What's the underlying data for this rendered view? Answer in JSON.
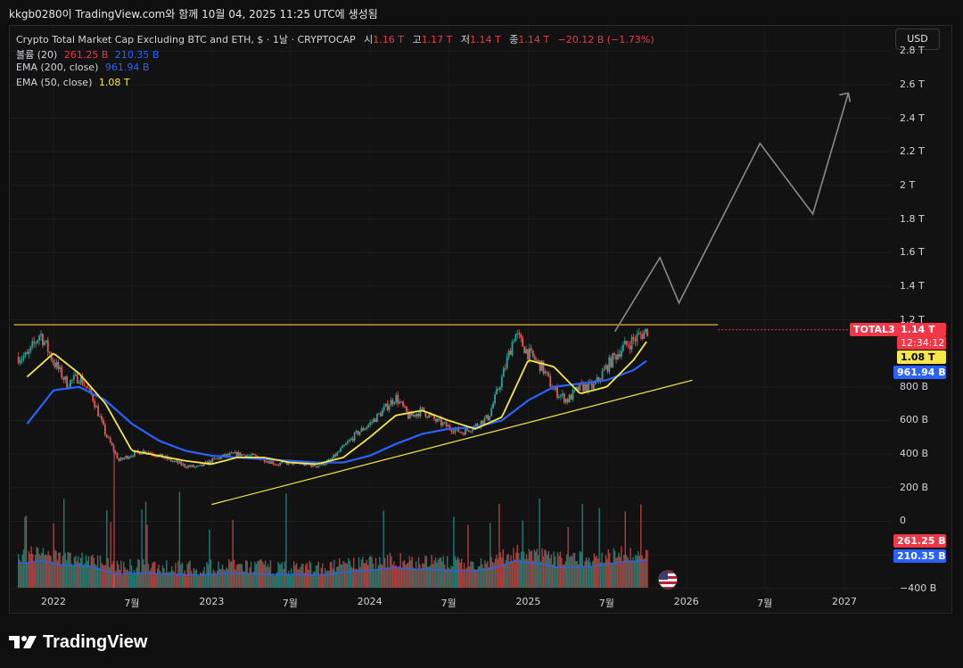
{
  "top_caption": "kkgb0280이 TradingView.com와 함께 10월 04, 2025 11:25 UTC에 생성됨",
  "legend": {
    "title_prefix": "Crypto Total Market Cap Excluding BTC and ETH, $ · 1날 · CRYPTOCAP",
    "ohlc": [
      {
        "label": "시",
        "value": "1.16 T"
      },
      {
        "label": "고",
        "value": "1.17 T"
      },
      {
        "label": "저",
        "value": "1.14 T"
      },
      {
        "label": "종",
        "value": "1.14 T"
      }
    ],
    "change": "−20.12 B (−1.73%)",
    "volume_label": "볼륨 (20)",
    "volume_value1": "261.25 B",
    "volume_value2": "210.35 B",
    "ema200_label": "EMA (200, close)",
    "ema200_value": "961.94 B",
    "ema50_label": "EMA (50, close)",
    "ema50_value": "1.08 T"
  },
  "currency_button": "USD",
  "price_tags": {
    "symbol": "TOTAL3",
    "last": "1.14 T",
    "countdown": "12:34:12",
    "ema50": "1.08 T",
    "ema200": "961.94 B",
    "vol1": "261.25 B",
    "vol2": "210.35 B"
  },
  "footer_brand": "TradingView",
  "colors": {
    "up": "#26a69a",
    "down": "#ef5350",
    "ema50": "#f7e64a",
    "ema200": "#2962ff",
    "resistance": "#f0b23c",
    "projection": "#8a8a8a",
    "last_price": "#f23645"
  },
  "chart_data": {
    "type": "line",
    "y_axis_ticks": [
      "2.8 T",
      "2.6 T",
      "2.4 T",
      "2.2 T",
      "2 T",
      "1.8 T",
      "1.6 T",
      "1.4 T",
      "1.2 T",
      "800 B",
      "600 B",
      "400 B",
      "200 B",
      "0",
      "−200 B",
      "−400 B"
    ],
    "x_axis_ticks": [
      "2022",
      "7월",
      "2023",
      "7월",
      "2024",
      "7월",
      "2025",
      "7월",
      "2026",
      "7월",
      "2027"
    ],
    "ylim_trillions": [
      -0.55,
      2.95
    ],
    "series": [
      {
        "name": "TOTAL3",
        "x": [
          "2021-11-01",
          "2021-12-01",
          "2022-01-01",
          "2022-02-01",
          "2022-03-01",
          "2022-04-01",
          "2022-05-01",
          "2022-06-01",
          "2022-07-01",
          "2022-08-01",
          "2022-09-01",
          "2022-10-01",
          "2022-11-01",
          "2022-12-01",
          "2023-01-01",
          "2023-02-01",
          "2023-03-01",
          "2023-04-01",
          "2023-05-01",
          "2023-06-01",
          "2023-07-01",
          "2023-08-01",
          "2023-09-01",
          "2023-10-01",
          "2023-11-01",
          "2023-12-01",
          "2024-01-01",
          "2024-02-01",
          "2024-03-01",
          "2024-04-01",
          "2024-05-01",
          "2024-06-01",
          "2024-07-01",
          "2024-08-01",
          "2024-09-01",
          "2024-10-01",
          "2024-11-01",
          "2024-12-01",
          "2025-01-01",
          "2025-02-01",
          "2025-03-01",
          "2025-04-01",
          "2025-05-01",
          "2025-06-01",
          "2025-07-01",
          "2025-08-01",
          "2025-09-01",
          "2025-10-04"
        ],
        "values": [
          0.98,
          1.12,
          0.95,
          0.82,
          0.86,
          0.74,
          0.52,
          0.36,
          0.4,
          0.42,
          0.39,
          0.36,
          0.33,
          0.32,
          0.36,
          0.39,
          0.4,
          0.39,
          0.37,
          0.34,
          0.35,
          0.34,
          0.33,
          0.36,
          0.44,
          0.52,
          0.58,
          0.66,
          0.74,
          0.62,
          0.66,
          0.6,
          0.56,
          0.53,
          0.57,
          0.62,
          0.85,
          1.12,
          1.0,
          0.92,
          0.78,
          0.72,
          0.8,
          0.8,
          0.92,
          1.02,
          1.08,
          1.14
        ]
      },
      {
        "name": "EMA (50, close)",
        "x": [
          "2021-11-01",
          "2022-01-01",
          "2022-03-01",
          "2022-05-01",
          "2022-07-01",
          "2022-09-01",
          "2022-11-01",
          "2023-01-01",
          "2023-03-01",
          "2023-05-01",
          "2023-07-01",
          "2023-09-01",
          "2023-11-01",
          "2024-01-01",
          "2024-03-01",
          "2024-05-01",
          "2024-07-01",
          "2024-09-01",
          "2024-11-01",
          "2025-01-01",
          "2025-03-01",
          "2025-05-01",
          "2025-07-01",
          "2025-09-01",
          "2025-10-04"
        ],
        "values": [
          0.86,
          1.0,
          0.88,
          0.7,
          0.42,
          0.39,
          0.36,
          0.34,
          0.38,
          0.38,
          0.35,
          0.34,
          0.38,
          0.5,
          0.63,
          0.66,
          0.6,
          0.55,
          0.62,
          0.96,
          0.92,
          0.76,
          0.8,
          0.96,
          1.08
        ]
      },
      {
        "name": "EMA (200, close)",
        "x": [
          "2021-11-01",
          "2022-01-01",
          "2022-03-01",
          "2022-05-01",
          "2022-07-01",
          "2022-09-01",
          "2022-11-01",
          "2023-01-01",
          "2023-03-01",
          "2023-05-01",
          "2023-07-01",
          "2023-09-01",
          "2023-11-01",
          "2024-01-01",
          "2024-03-01",
          "2024-05-01",
          "2024-07-01",
          "2024-09-01",
          "2024-11-01",
          "2025-01-01",
          "2025-03-01",
          "2025-05-01",
          "2025-07-01",
          "2025-09-01",
          "2025-10-04"
        ],
        "values": [
          0.58,
          0.78,
          0.8,
          0.72,
          0.58,
          0.48,
          0.42,
          0.39,
          0.38,
          0.37,
          0.36,
          0.35,
          0.35,
          0.39,
          0.46,
          0.52,
          0.55,
          0.56,
          0.6,
          0.72,
          0.8,
          0.82,
          0.84,
          0.9,
          0.96
        ]
      },
      {
        "name": "Projection",
        "x": [
          "2025-07-20",
          "2025-11-01",
          "2025-12-15",
          "2026-06-20",
          "2026-10-20",
          "2027-01-10"
        ],
        "values": [
          1.13,
          1.57,
          1.3,
          2.25,
          1.83,
          2.55
        ]
      }
    ],
    "lines": [
      {
        "name": "Resistance",
        "x": [
          "2021-10-01",
          "2026-03-15"
        ],
        "values": [
          1.17,
          1.17
        ]
      },
      {
        "name": "Support trend",
        "x": [
          "2023-01-01",
          "2026-01-15"
        ],
        "values": [
          0.1,
          0.84
        ]
      }
    ],
    "grid": true,
    "legend_position": "top-left"
  }
}
